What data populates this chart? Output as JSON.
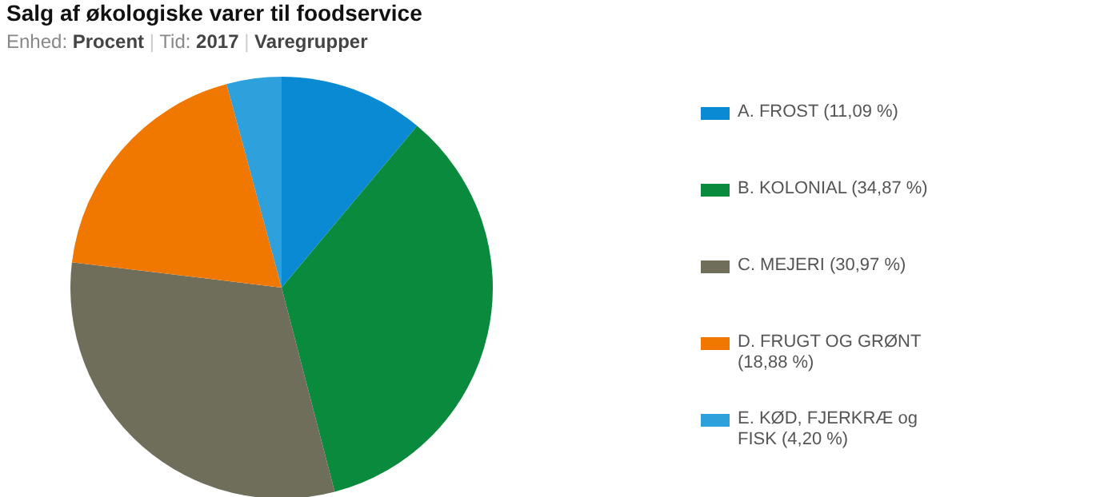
{
  "chart_data": {
    "type": "pie",
    "title": "Salg af økologiske varer til foodservice",
    "subtitle": "Enhed: Procent | Tid: 2017 | Varegrupper",
    "categories": [
      "A. FROST (11,09 %)",
      "B. KOLONIAL (34,87 %)",
      "C. MEJERI (30,97 %)",
      "D. FRUGT OG GRØNT (18,88 %)",
      "E. KØD, FJERKRÆ og FISK (4,20 %)"
    ],
    "values": [
      11.09,
      34.87,
      30.97,
      18.88,
      4.2
    ],
    "colors": [
      "#0a8ad2",
      "#0a8a3c",
      "#6e6e5a",
      "#f07800",
      "#2ea0dc"
    ],
    "legend": "right"
  }
}
